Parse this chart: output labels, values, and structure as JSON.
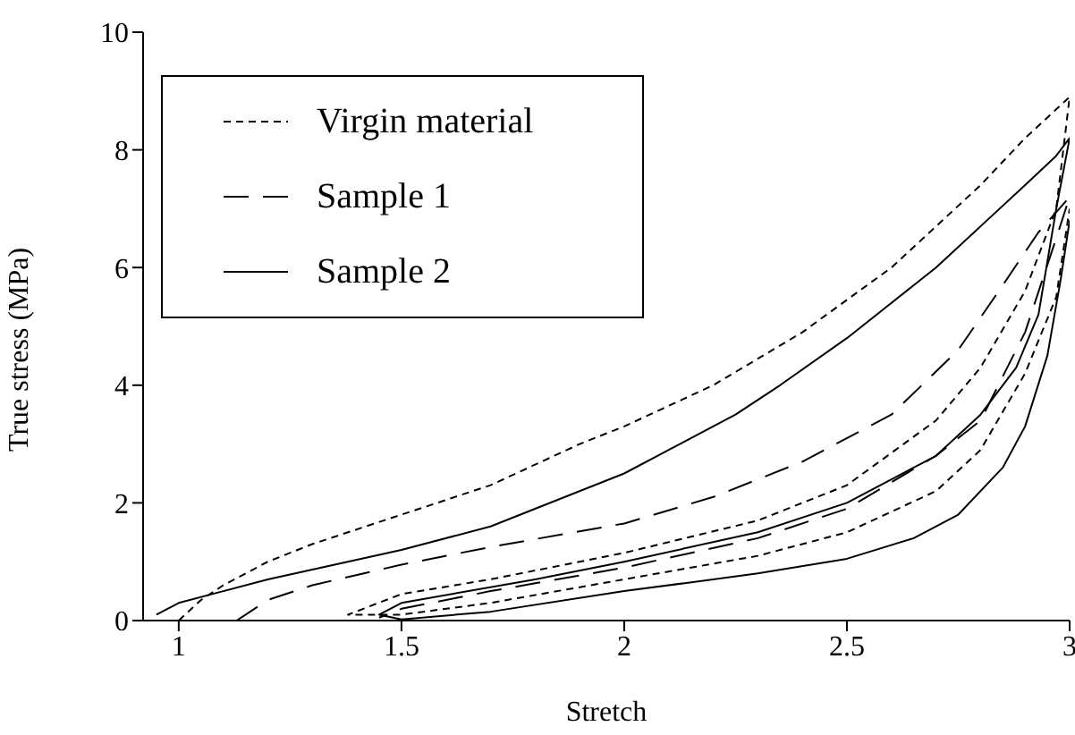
{
  "chart_data": {
    "type": "line",
    "xlabel": "Stretch",
    "ylabel": "True stress (MPa)",
    "xlim": [
      0.92,
      3
    ],
    "xticks": [
      1,
      1.5,
      2,
      2.5,
      3
    ],
    "ylim": [
      0,
      10
    ],
    "yticks": [
      0,
      2,
      4,
      6,
      8,
      10
    ],
    "grid": false,
    "legend": "top left",
    "marker": "none",
    "series": [
      {
        "name": "Virgin material",
        "color": "#000000",
        "line_style": "dotted",
        "x": [
          1.0,
          1.05,
          1.1,
          1.2,
          1.3,
          1.5,
          1.7,
          1.9,
          2.0,
          2.2,
          2.4,
          2.6,
          2.8,
          2.9,
          3.0,
          2.97,
          2.9,
          2.8,
          2.7,
          2.5,
          2.3,
          2.0,
          1.7,
          1.5,
          1.38,
          1.5,
          1.7,
          2.0,
          2.3,
          2.5,
          2.7,
          2.8,
          2.9,
          2.97,
          3.0
        ],
        "values": [
          0.0,
          0.35,
          0.6,
          1.0,
          1.3,
          1.8,
          2.3,
          3.0,
          3.3,
          4.0,
          4.9,
          6.0,
          7.4,
          8.2,
          8.9,
          7.0,
          5.6,
          4.3,
          3.4,
          2.3,
          1.7,
          1.15,
          0.7,
          0.45,
          0.1,
          0.1,
          0.3,
          0.7,
          1.1,
          1.5,
          2.2,
          2.9,
          4.2,
          5.5,
          7.0
        ]
      },
      {
        "name": "Sample 1",
        "color": "#000000",
        "line_style": "dashed",
        "x": [
          1.13,
          1.2,
          1.3,
          1.5,
          1.7,
          2.0,
          2.2,
          2.4,
          2.6,
          2.75,
          2.85,
          2.93,
          3.0,
          2.97,
          2.9,
          2.8,
          2.7,
          2.5,
          2.3,
          2.0,
          1.7,
          1.5,
          1.45
        ],
        "values": [
          0.0,
          0.35,
          0.6,
          0.95,
          1.25,
          1.65,
          2.1,
          2.7,
          3.5,
          4.6,
          5.7,
          6.6,
          7.2,
          6.5,
          4.9,
          3.4,
          2.8,
          1.9,
          1.4,
          0.9,
          0.5,
          0.2,
          0.05
        ]
      },
      {
        "name": "Sample 2",
        "color": "#000000",
        "line_style": "solid",
        "x": [
          0.95,
          1.0,
          1.1,
          1.2,
          1.35,
          1.5,
          1.7,
          1.8,
          2.0,
          2.1,
          2.25,
          2.35,
          2.5,
          2.6,
          2.7,
          2.8,
          2.9,
          2.97,
          3.0,
          2.97,
          2.93,
          2.88,
          2.8,
          2.7,
          2.6,
          2.5,
          2.3,
          2.0,
          1.8,
          1.5,
          1.45,
          1.5,
          1.7,
          2.0,
          2.3,
          2.5,
          2.65,
          2.75,
          2.85,
          2.9,
          2.95,
          2.98,
          3.0
        ],
        "values": [
          0.1,
          0.3,
          0.5,
          0.7,
          0.95,
          1.2,
          1.6,
          1.9,
          2.5,
          2.9,
          3.5,
          4.0,
          4.8,
          5.4,
          6.0,
          6.7,
          7.4,
          7.9,
          8.2,
          7.0,
          5.2,
          4.3,
          3.5,
          2.8,
          2.4,
          2.0,
          1.5,
          1.0,
          0.7,
          0.3,
          0.1,
          0.02,
          0.15,
          0.5,
          0.8,
          1.05,
          1.4,
          1.8,
          2.6,
          3.3,
          4.5,
          5.8,
          6.8
        ]
      }
    ]
  }
}
